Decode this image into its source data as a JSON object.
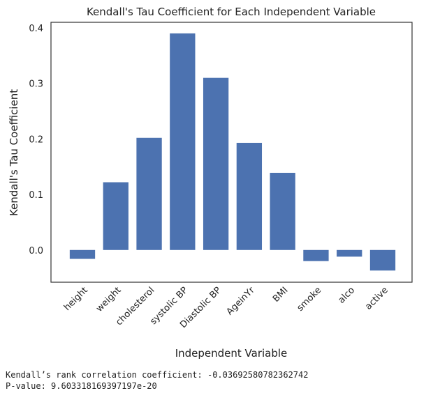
{
  "chart_data": {
    "type": "bar",
    "title": "Kendall's Tau Coefficient for Each Independent Variable",
    "xlabel": "Independent Variable",
    "ylabel": "Kendall's Tau Coefficient",
    "categories": [
      "height",
      "weight",
      "cholesterol",
      "systolic BP",
      "Diastolic BP",
      "AgeinYr",
      "BMI",
      "smoke",
      "alco",
      "active"
    ],
    "values": [
      -0.016,
      0.122,
      0.202,
      0.39,
      0.31,
      0.193,
      0.139,
      -0.02,
      -0.012,
      -0.037
    ],
    "ylim": [
      -0.058,
      0.41
    ],
    "yticks": [
      0.0,
      0.1,
      0.2,
      0.3,
      0.4
    ],
    "ytick_labels": [
      "0.0",
      "0.1",
      "0.2",
      "0.3",
      "0.4"
    ],
    "grid": false,
    "bar_color": "#4c72b0"
  },
  "output": {
    "line1": "Kendall’s rank correlation coefficient: -0.03692580782362742",
    "line2": "P-value: 9.603318169397197e-20"
  }
}
